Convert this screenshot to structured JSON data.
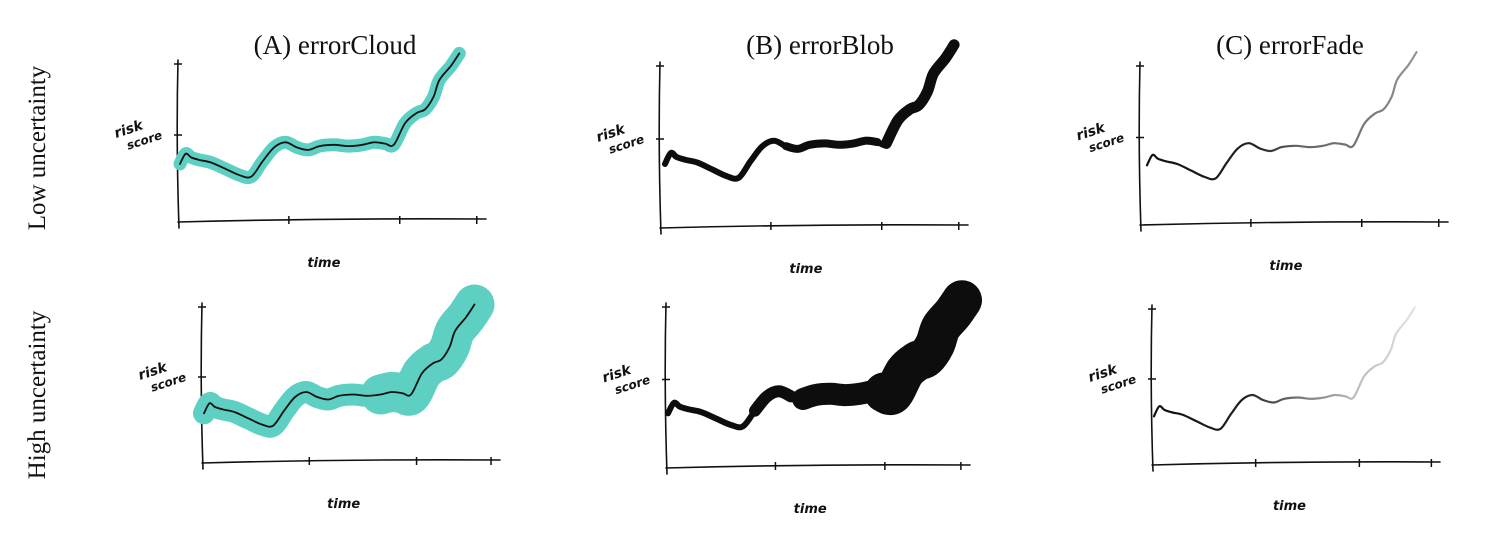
{
  "columns": [
    {
      "label": "(A) errorCloud",
      "style": "cloud",
      "accent": "#5ecfc3"
    },
    {
      "label": "(B) errorBlob",
      "style": "blob",
      "accent": "#0d0d0d"
    },
    {
      "label": "(C) errorFade",
      "style": "fade",
      "accent": "#111111"
    }
  ],
  "rows": [
    {
      "label": "Low uncertainty",
      "uncertainty": "low"
    },
    {
      "label": "High uncertainty",
      "uncertainty": "high"
    }
  ],
  "axes": {
    "ylabel_line1": "risk",
    "ylabel_line2": "score",
    "xlabel": "time"
  }
}
